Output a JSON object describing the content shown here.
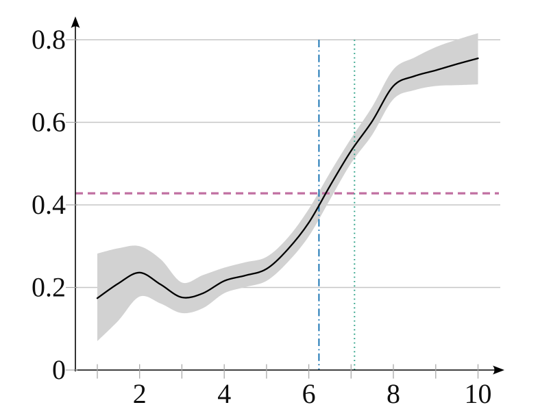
{
  "figure": {
    "background": "#ffffff"
  },
  "chart_data": {
    "type": "line",
    "title": "",
    "xlabel": "",
    "ylabel": "",
    "xlim": [
      0.48,
      10.6
    ],
    "ylim": [
      0,
      0.84
    ],
    "grid": "horizontal-only",
    "legend": "none",
    "x_ticks": [
      1,
      2,
      3,
      4,
      5,
      6,
      7,
      8,
      9,
      10
    ],
    "x_tick_labels": [
      "",
      "2",
      "",
      "4",
      "",
      "6",
      "",
      "8",
      "",
      "10"
    ],
    "y_ticks": [
      0,
      0.2,
      0.4,
      0.6,
      0.8
    ],
    "y_tick_labels": [
      "0",
      "0.2",
      "0.4",
      "0.6",
      "0.8"
    ],
    "x": [
      1,
      1.5,
      2,
      2.5,
      3,
      3.5,
      4,
      4.5,
      5,
      5.5,
      6,
      6.5,
      7,
      7.5,
      8,
      8.5,
      9,
      9.5,
      10
    ],
    "series": [
      {
        "name": "estimate-curve",
        "type": "line",
        "color": "#000000",
        "y": [
          0.174,
          0.21,
          0.236,
          0.207,
          0.176,
          0.186,
          0.216,
          0.229,
          0.245,
          0.292,
          0.357,
          0.446,
          0.531,
          0.603,
          0.688,
          0.712,
          0.726,
          0.741,
          0.755
        ]
      },
      {
        "name": "confidence-band-upper",
        "type": "band-edge",
        "color": "#d2d2d2",
        "y": [
          0.282,
          0.295,
          0.3,
          0.268,
          0.212,
          0.23,
          0.248,
          0.261,
          0.274,
          0.32,
          0.39,
          0.478,
          0.561,
          0.638,
          0.728,
          0.757,
          0.782,
          0.8,
          0.816
        ]
      },
      {
        "name": "confidence-band-lower",
        "type": "band-edge",
        "color": "#d2d2d2",
        "y": [
          0.07,
          0.12,
          0.178,
          0.161,
          0.138,
          0.15,
          0.186,
          0.201,
          0.216,
          0.261,
          0.324,
          0.413,
          0.501,
          0.57,
          0.656,
          0.678,
          0.688,
          0.69,
          0.692
        ]
      }
    ],
    "reference_lines": [
      {
        "name": "horizontal-threshold",
        "orientation": "horizontal",
        "value": 0.428,
        "style": "dashed",
        "color": "#c06fa1"
      },
      {
        "name": "vertical-dashdot",
        "orientation": "vertical",
        "value": 6.24,
        "style": "dash-dot",
        "color": "#1d76b4"
      },
      {
        "name": "vertical-dotted",
        "orientation": "vertical",
        "value": 7.08,
        "style": "dotted",
        "color": "#2aa186"
      }
    ],
    "band_color": "#d2d2d2",
    "gridline_color": "#c6c6c6",
    "axis_color": "#000000",
    "tick_color": "#a8a8a8"
  }
}
